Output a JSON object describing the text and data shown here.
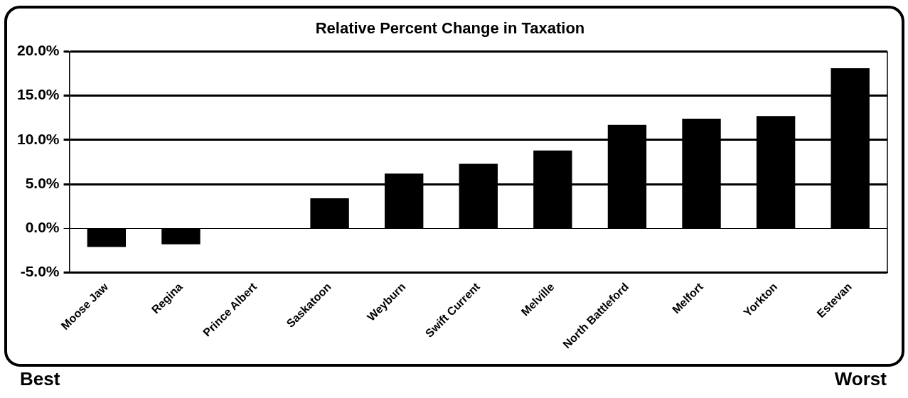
{
  "chart_data": {
    "type": "bar",
    "title": "Relative Percent Change in Taxation",
    "categories": [
      "Moose Jaw",
      "Regina",
      "Prince Albert",
      "Saskatoon",
      "Weyburn",
      "Swift Current",
      "Melville",
      "North Battleford",
      "Melfort",
      "Yorkton",
      "Estevan"
    ],
    "values": [
      -2.1,
      -1.8,
      0,
      3.4,
      6.2,
      7.3,
      8.8,
      11.7,
      12.4,
      12.7,
      18.1
    ],
    "color": "#000000",
    "ylim": [
      -5,
      20
    ],
    "yticks": [
      {
        "value": -5,
        "label": "-5.0%"
      },
      {
        "value": 0,
        "label": "0.0%"
      },
      {
        "value": 5,
        "label": "5.0%"
      },
      {
        "value": 10,
        "label": "10.0%"
      },
      {
        "value": 15,
        "label": "15.0%"
      },
      {
        "value": 20,
        "label": "20.0%"
      }
    ],
    "grid": "y",
    "legend": false,
    "annotations": [
      "Best",
      "Worst"
    ]
  }
}
